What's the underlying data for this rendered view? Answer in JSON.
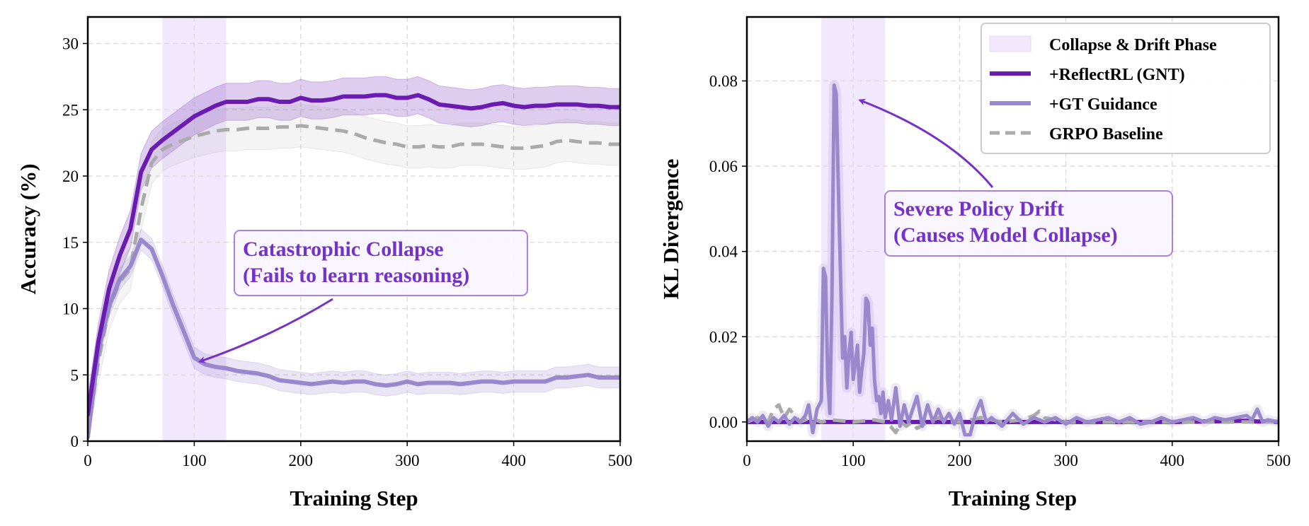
{
  "colors": {
    "reflect": "#6a1bb0",
    "gt": "#9a88cc",
    "baseline": "#aaaaaa",
    "phase": "#f1e8fd",
    "annotation": "#7432c8"
  },
  "chart_data": [
    {
      "type": "line",
      "xlabel": "Training Step",
      "ylabel": "Accuracy (%)",
      "xlim": [
        0,
        500
      ],
      "ylim": [
        0,
        32
      ],
      "xticks": [
        0,
        100,
        200,
        300,
        400,
        500
      ],
      "yticks": [
        0,
        5,
        10,
        15,
        20,
        25,
        30
      ],
      "grid": true,
      "shaded_region": [
        70,
        130
      ],
      "annotation": {
        "lines": [
          "Catastrophic Collapse",
          "(Fails to learn reasoning)"
        ],
        "arrow_target": [
          105,
          6.0
        ]
      },
      "series": [
        {
          "name": "+ReflectRL (GNT)",
          "style": "solid",
          "x": [
            0,
            10,
            20,
            30,
            40,
            50,
            60,
            70,
            80,
            90,
            100,
            110,
            120,
            130,
            140,
            150,
            160,
            170,
            180,
            190,
            200,
            210,
            220,
            230,
            240,
            250,
            260,
            270,
            280,
            290,
            300,
            310,
            320,
            330,
            340,
            350,
            360,
            370,
            380,
            390,
            400,
            410,
            420,
            430,
            440,
            450,
            460,
            470,
            480,
            490,
            500
          ],
          "values": [
            2,
            7.5,
            11.5,
            14,
            16,
            20.3,
            22,
            22.7,
            23.3,
            23.9,
            24.5,
            24.9,
            25.3,
            25.6,
            25.6,
            25.6,
            25.8,
            25.8,
            25.6,
            25.6,
            25.9,
            25.7,
            25.7,
            25.8,
            26.0,
            26.0,
            26.0,
            26.1,
            26.1,
            25.9,
            25.9,
            26.1,
            25.8,
            25.4,
            25.3,
            25.2,
            25.1,
            25.2,
            25.4,
            25.5,
            25.3,
            25.2,
            25.3,
            25.3,
            25.4,
            25.4,
            25.4,
            25.3,
            25.3,
            25.2,
            25.2
          ],
          "band": 1.4
        },
        {
          "name": "+GT Guidance",
          "style": "solid",
          "x": [
            0,
            10,
            20,
            30,
            40,
            50,
            60,
            70,
            80,
            90,
            100,
            110,
            120,
            130,
            140,
            150,
            160,
            170,
            180,
            190,
            200,
            210,
            220,
            230,
            240,
            250,
            260,
            270,
            280,
            290,
            300,
            310,
            320,
            330,
            340,
            350,
            360,
            370,
            380,
            390,
            400,
            410,
            420,
            430,
            440,
            450,
            460,
            470,
            480,
            490,
            500
          ],
          "values": [
            0.3,
            6.8,
            10.2,
            12.2,
            13.2,
            15.2,
            14.5,
            12.5,
            10.3,
            8.3,
            6.3,
            5.8,
            5.6,
            5.5,
            5.3,
            5.2,
            5.1,
            4.9,
            4.6,
            4.5,
            4.4,
            4.3,
            4.4,
            4.5,
            4.4,
            4.5,
            4.5,
            4.3,
            4.2,
            4.3,
            4.5,
            4.3,
            4.4,
            4.4,
            4.4,
            4.3,
            4.4,
            4.5,
            4.5,
            4.4,
            4.5,
            4.5,
            4.5,
            4.5,
            4.8,
            4.8,
            4.9,
            5.0,
            4.8,
            4.8,
            4.8
          ],
          "band": 0.8
        },
        {
          "name": "GRPO Baseline",
          "style": "dashed",
          "x": [
            0,
            10,
            20,
            30,
            40,
            50,
            60,
            70,
            80,
            90,
            100,
            110,
            120,
            130,
            140,
            150,
            160,
            170,
            180,
            190,
            200,
            210,
            220,
            230,
            240,
            250,
            260,
            270,
            280,
            290,
            300,
            310,
            320,
            330,
            340,
            350,
            360,
            370,
            380,
            390,
            400,
            410,
            420,
            430,
            440,
            450,
            460,
            470,
            480,
            490,
            500
          ],
          "values": [
            0.5,
            6.0,
            10.0,
            12.0,
            13.0,
            17.5,
            21.0,
            22.0,
            22.4,
            22.7,
            23.0,
            23.2,
            23.4,
            23.5,
            23.5,
            23.6,
            23.6,
            23.6,
            23.7,
            23.7,
            23.8,
            23.7,
            23.6,
            23.5,
            23.4,
            23.2,
            22.9,
            22.7,
            22.5,
            22.4,
            22.2,
            22.2,
            22.3,
            22.2,
            22.2,
            22.4,
            22.4,
            22.4,
            22.3,
            22.2,
            22.1,
            22.1,
            22.2,
            22.3,
            22.6,
            22.7,
            22.6,
            22.5,
            22.5,
            22.4,
            22.4
          ],
          "band": 1.6
        }
      ]
    },
    {
      "type": "line",
      "xlabel": "Training Step",
      "ylabel": "KL Divergence",
      "xlim": [
        0,
        500
      ],
      "ylim": [
        -0.0045,
        0.095
      ],
      "xticks": [
        0,
        100,
        200,
        300,
        400,
        500
      ],
      "yticks": [
        0.0,
        0.02,
        0.04,
        0.06,
        0.08
      ],
      "ytick_labels": [
        "0.00",
        "0.02",
        "0.04",
        "0.06",
        "0.08"
      ],
      "grid": true,
      "shaded_region": [
        70,
        130
      ],
      "legend": {
        "position": "upper-right",
        "entries": [
          "Collapse & Drift Phase",
          "+ReflectRL (GNT)",
          "+GT Guidance",
          "GRPO Baseline"
        ]
      },
      "annotation": {
        "lines": [
          "Severe Policy Drift",
          "(Causes Model Collapse)"
        ],
        "arrow_target": [
          106,
          0.0755
        ]
      },
      "series": [
        {
          "name": "+ReflectRL (GNT)",
          "style": "solid",
          "x": [
            0,
            100,
            200,
            300,
            400,
            450,
            470,
            480,
            490,
            500
          ],
          "values": [
            0.0,
            0.0,
            0.0,
            0.0,
            0.0,
            0.0002,
            0.0003,
            0.0001,
            0.0002,
            0.0
          ]
        },
        {
          "name": "+GT Guidance",
          "style": "solid",
          "x": [
            0,
            5,
            10,
            15,
            20,
            25,
            30,
            35,
            40,
            45,
            50,
            55,
            58,
            62,
            66,
            70,
            72,
            74,
            76,
            78,
            80,
            82,
            84,
            86,
            88,
            90,
            92,
            94,
            96,
            98,
            100,
            102,
            104,
            106,
            108,
            110,
            112,
            114,
            116,
            118,
            120,
            122,
            124,
            126,
            128,
            130,
            133,
            136,
            140,
            144,
            148,
            152,
            156,
            160,
            165,
            170,
            175,
            180,
            185,
            190,
            195,
            200,
            205,
            210,
            215,
            220,
            225,
            230,
            240,
            250,
            260,
            270,
            280,
            290,
            300,
            310,
            320,
            330,
            340,
            350,
            360,
            370,
            380,
            390,
            400,
            410,
            420,
            430,
            440,
            450,
            460,
            470,
            475,
            480,
            485,
            490,
            500
          ],
          "values": [
            0.0,
            0.001,
            0.0,
            0.0015,
            -0.001,
            0.001,
            0.0,
            0.0015,
            -0.0005,
            0.001,
            0.0,
            0.0015,
            0.004,
            -0.0025,
            0.003,
            0.005,
            0.036,
            0.034,
            0.01,
            0.002,
            0.03,
            0.079,
            0.077,
            0.055,
            0.035,
            0.015,
            0.02,
            0.008,
            0.016,
            0.021,
            0.01,
            0.014,
            0.018,
            0.007,
            0.012,
            0.016,
            0.029,
            0.028,
            0.018,
            0.022,
            0.01,
            0.005,
            0.006,
            0.002,
            0.007,
            0.001,
            0.005,
            0.0005,
            0.008,
            -0.001,
            0.004,
            0.0,
            0.003,
            0.006,
            -0.001,
            0.004,
            0.0,
            0.003,
            0.0,
            0.002,
            -0.0005,
            0.002,
            -0.003,
            -0.003,
            0.002,
            0.005,
            0.0,
            0.001,
            -0.001,
            0.002,
            -0.0005,
            0.001,
            0.0,
            0.001,
            -0.0005,
            0.001,
            0.0,
            0.0005,
            0.001,
            0.0,
            0.001,
            -0.0005,
            0.0,
            0.001,
            0.0,
            0.0005,
            0.001,
            0.0,
            0.001,
            0.0005,
            0.001,
            0.0015,
            0.0005,
            0.003,
            0.0,
            0.0005,
            0.0
          ]
        },
        {
          "name": "GRPO Baseline",
          "style": "dashed",
          "x": [
            0,
            10,
            20,
            25,
            30,
            35,
            40,
            50,
            60,
            70,
            80,
            100,
            120,
            130,
            135,
            140,
            145,
            150,
            155,
            160,
            170,
            180,
            190,
            200,
            220,
            240,
            260,
            270,
            275,
            280,
            300,
            400,
            500
          ],
          "values": [
            0.0,
            0.001,
            0.0,
            0.003,
            0.004,
            0.001,
            0.003,
            0.0,
            0.001,
            0.0,
            0.0005,
            0.0,
            0.0005,
            0.0,
            -0.001,
            -0.0025,
            0.0,
            -0.001,
            0.0,
            -0.0015,
            0.0,
            0.001,
            0.0,
            0.0,
            0.001,
            0.0,
            0.0005,
            0.0015,
            0.0025,
            0.001,
            0.0,
            0.0,
            0.0
          ]
        }
      ]
    }
  ]
}
